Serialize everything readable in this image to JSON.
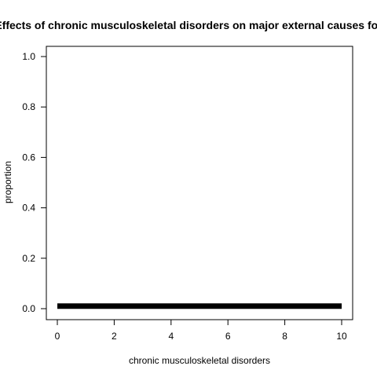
{
  "chart_data": {
    "type": "line",
    "title": "Effects of chronic musculoskeletal disorders on major external causes for",
    "xlabel": "chronic musculoskeletal disorders",
    "ylabel": "proportion",
    "xlim": [
      0,
      10
    ],
    "ylim": [
      0,
      1
    ],
    "x_ticks": [
      "0",
      "2",
      "4",
      "6",
      "8",
      "10"
    ],
    "y_ticks": [
      "0.0",
      "0.2",
      "0.4",
      "0.6",
      "0.8",
      "1.0"
    ],
    "series": [
      {
        "x": [
          0,
          1,
          2,
          3,
          4,
          5,
          6,
          7,
          8,
          9,
          10
        ],
        "values": [
          0.01,
          0.01,
          0.01,
          0.01,
          0.01,
          0.01,
          0.01,
          0.01,
          0.01,
          0.01,
          0.01
        ],
        "color": "#000000"
      }
    ],
    "grid": false,
    "legend": "none"
  }
}
